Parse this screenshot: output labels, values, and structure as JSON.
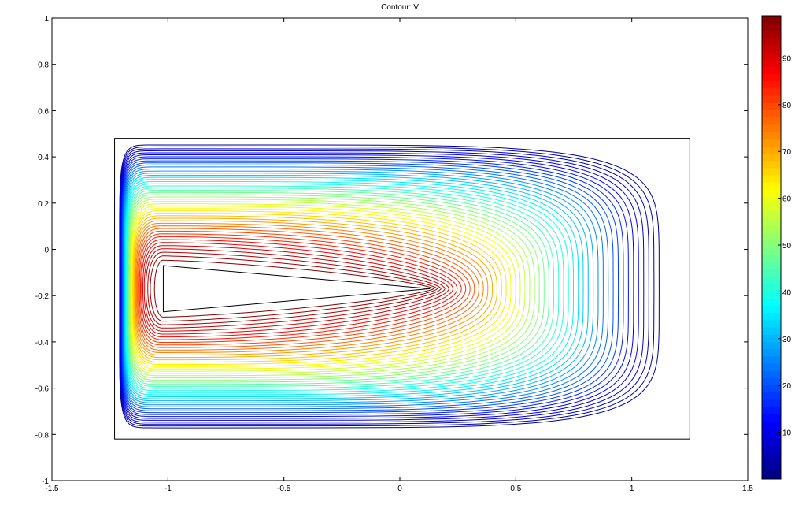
{
  "chart_data": {
    "type": "contour",
    "title": "Contour: V",
    "xlim": [
      -1.5,
      1.5
    ],
    "ylim": [
      -1,
      1
    ],
    "xticks": [
      -1.5,
      -1,
      -0.5,
      0,
      0.5,
      1,
      1.5
    ],
    "yticks": [
      -1,
      -0.8,
      -0.6,
      -0.4,
      -0.2,
      0,
      0.2,
      0.4,
      0.6,
      0.8,
      1
    ],
    "domain": {
      "x": [
        -1.23,
        1.25
      ],
      "y": [
        -0.82,
        0.48
      ]
    },
    "hole": {
      "x": [
        -1.02,
        -1.02,
        0.13
      ],
      "y": [
        -0.07,
        -0.27,
        -0.17
      ]
    },
    "levels": [
      2,
      4,
      6,
      8,
      10,
      12,
      14,
      16,
      18,
      20,
      22,
      24,
      26,
      28,
      30,
      32,
      34,
      36,
      38,
      40,
      42,
      44,
      46,
      48,
      50,
      52,
      54,
      56,
      58,
      60,
      62,
      64,
      66,
      68,
      70,
      72,
      74,
      76,
      78,
      80,
      82,
      84,
      86,
      88,
      90,
      92,
      94,
      96,
      98
    ],
    "clim": [
      0,
      99
    ],
    "colormap": "jet",
    "colorbar_ticks": [
      10,
      20,
      30,
      40,
      50,
      60,
      70,
      80,
      90
    ]
  }
}
